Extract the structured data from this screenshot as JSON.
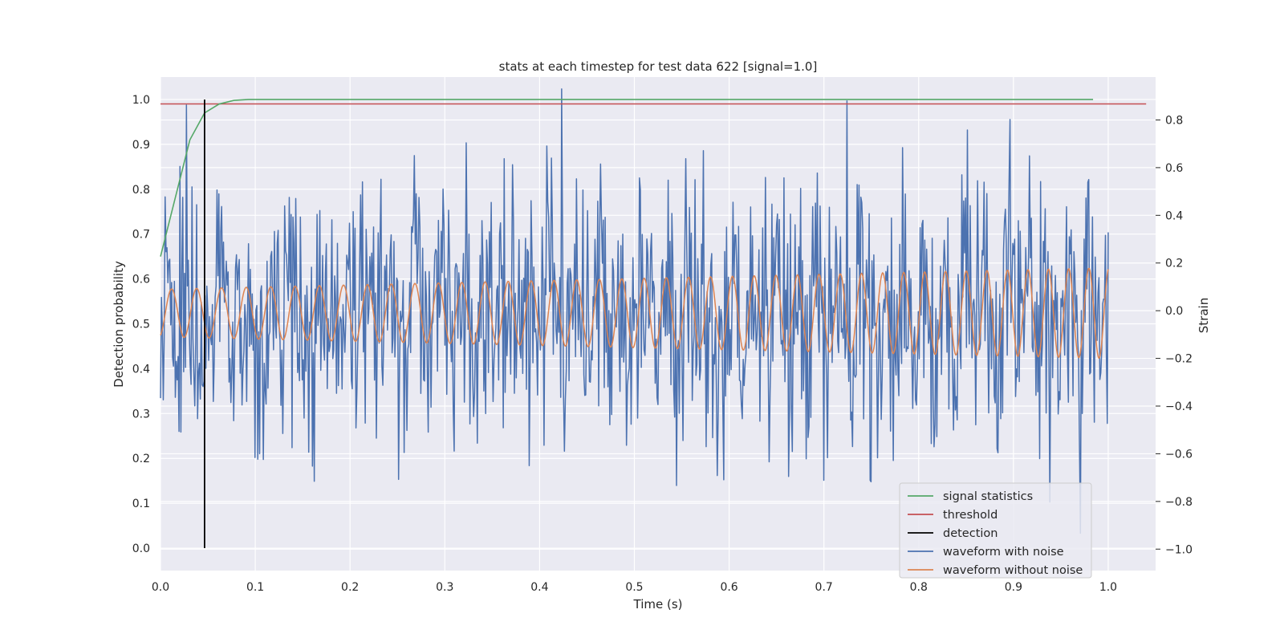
{
  "chart_data": {
    "type": "line",
    "title": "stats at each timestep for test data 622 [signal=1.0]",
    "xlabel": "Time (s)",
    "ylabel": "Detection probability",
    "y2label": "Strain",
    "xlim": [
      0.0,
      1.05
    ],
    "ylim": [
      -0.05,
      1.05
    ],
    "y2lim": [
      -1.09,
      0.98
    ],
    "xticks": [
      "0.0",
      "0.1",
      "0.2",
      "0.3",
      "0.4",
      "0.5",
      "0.6",
      "0.7",
      "0.8",
      "0.9",
      "1.0"
    ],
    "yticks": [
      "0.0",
      "0.1",
      "0.2",
      "0.3",
      "0.4",
      "0.5",
      "0.6",
      "0.7",
      "0.8",
      "0.9",
      "1.0"
    ],
    "y2ticks": [
      "−1.0",
      "−0.8",
      "−0.6",
      "−0.4",
      "−0.2",
      "0.0",
      "0.2",
      "0.4",
      "0.6",
      "0.8"
    ],
    "grid": true,
    "legend_position": "lower-right",
    "colors": {
      "signal_statistics": "#55a868",
      "threshold": "#c44e52",
      "detection": "#000000",
      "waveform_with_noise": "#4c72b0",
      "waveform_without_noise": "#dd8452",
      "plot_background": "#eaeaf2",
      "grid": "#ffffff"
    },
    "series": [
      {
        "name": "signal statistics",
        "axis": "left",
        "x": [
          0.0,
          0.0155,
          0.031,
          0.0465,
          0.062,
          0.0775,
          0.093,
          0.2,
          0.4,
          0.6,
          0.8,
          0.984
        ],
        "y": [
          0.65,
          0.78,
          0.91,
          0.97,
          0.99,
          0.998,
          1.0,
          1.0,
          1.0,
          1.0,
          1.0,
          1.0
        ]
      },
      {
        "name": "threshold",
        "axis": "left",
        "x": [
          0.0,
          1.04
        ],
        "y": [
          0.99,
          0.99
        ]
      },
      {
        "name": "detection",
        "axis": "left",
        "x": [
          0.0465,
          0.0465
        ],
        "y": [
          0.0,
          1.0
        ]
      },
      {
        "name": "waveform with noise",
        "axis": "right",
        "x_range": [
          0.0,
          1.0
        ],
        "n_points": 1024,
        "approx_std": 0.28,
        "approx_range": [
          -1.0,
          0.93
        ]
      },
      {
        "name": "waveform without noise",
        "axis": "right",
        "x_range": [
          0.0,
          1.0
        ],
        "cycles": 40,
        "amplitude_start": 0.1,
        "amplitude_end": 0.19
      }
    ],
    "legend": [
      "signal statistics",
      "threshold",
      "detection",
      "waveform with noise",
      "waveform without noise"
    ]
  }
}
